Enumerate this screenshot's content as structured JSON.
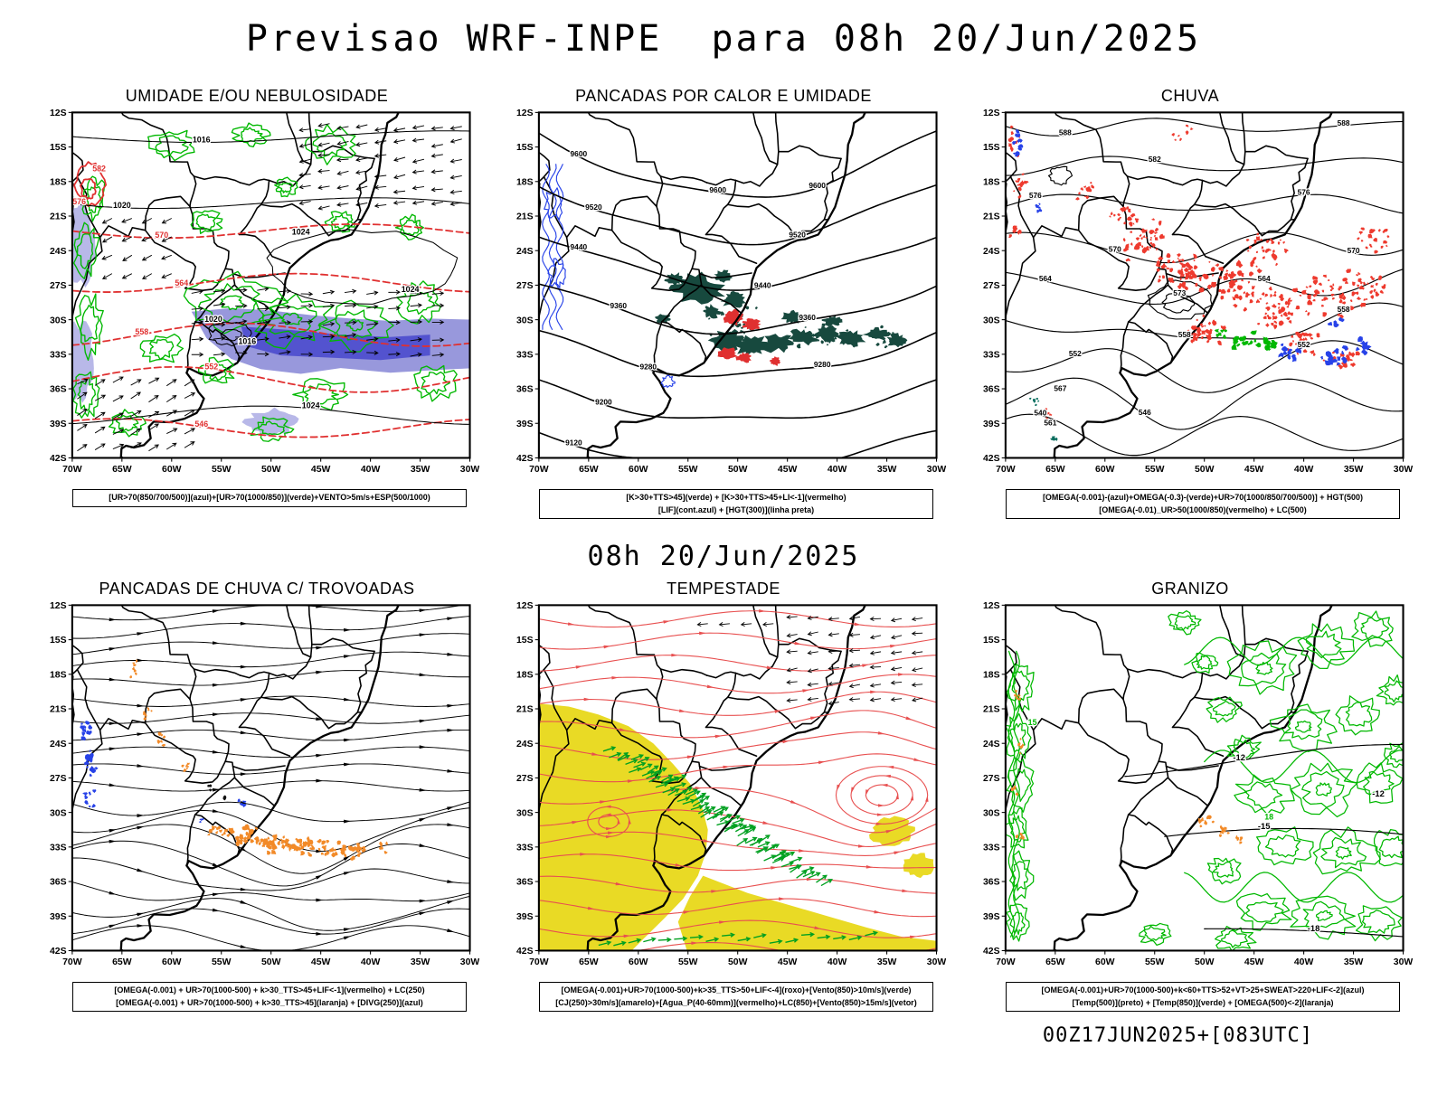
{
  "header": {
    "title": "Previsao WRF-INPE  para 08h 20/Jun/2025"
  },
  "middle_label": "08h 20/Jun/2025",
  "foot": {
    "run_label": "00Z17JUN2025+[083UTC]"
  },
  "axes": {
    "lat_labels": [
      "12S",
      "15S",
      "18S",
      "21S",
      "24S",
      "27S",
      "30S",
      "33S",
      "36S",
      "39S",
      "42S"
    ],
    "lon_labels": [
      "70W",
      "65W",
      "60W",
      "55W",
      "50W",
      "45W",
      "40W",
      "35W",
      "30W"
    ],
    "lat_range": [
      12,
      42
    ],
    "lon_range": [
      70,
      30
    ]
  },
  "colors": {
    "green": "#00b800",
    "teal": "#17493e",
    "teal_speck": "#0b6e5f",
    "red": "#e03030",
    "red_speckle": "#ee3a2e",
    "stream_red": "#e85050",
    "blue": "#2742e8",
    "shade_light": "#b8b8e8",
    "shade_mid": "#9898dc",
    "shade_dark": "#5353cf",
    "orange": "#f28a28",
    "yellow": "#e9da25",
    "vector_green": "#00a020",
    "black": "#000000"
  },
  "panels": [
    {
      "key": "umidade",
      "title": "UMIDADE E/OU NEBULOSIDADE",
      "caption_lines": [
        "[UR>70(850/700/500)](azul)+[UR>70(1000/850)](verde)+VENTO>5m/s+ESP(500/1000)"
      ],
      "contour_labels": {
        "black": [
          "1016",
          "1020",
          "1024",
          "1024",
          "1020",
          "1016",
          "1024"
        ],
        "red": [
          "582",
          "576",
          "570",
          "564",
          "558",
          "552",
          "546"
        ]
      }
    },
    {
      "key": "pancadas_calor",
      "title": "PANCADAS POR CALOR E UMIDADE",
      "caption_lines": [
        "[K>30+TTS>45](verde) + [K>30+TTS>45+LI<-1](vermelho)",
        "[LIF](cont.azul) + [HGT(300)](linha preta)"
      ],
      "contour_labels": {
        "black": [
          "9600",
          "9520",
          "9440",
          "9360",
          "9280",
          "9200",
          "9120"
        ]
      }
    },
    {
      "key": "chuva",
      "title": "CHUVA",
      "caption_lines": [
        "[OMEGA(-0.001)-(azul)+OMEGA(-0.3)-(verde)+UR>70(1000/850/700/500)] + HGT(500)",
        "[OMEGA(-0.01)_UR>50(1000/850)(vermelho) + LC(500)"
      ],
      "contour_labels": {
        "black": [
          "588",
          "582",
          "576",
          "570",
          "564",
          "558",
          "552",
          "546",
          "540",
          "573",
          "567",
          "561"
        ]
      }
    },
    {
      "key": "trovoadas",
      "title": "PANCADAS DE CHUVA C/ TROVOADAS",
      "caption_lines": [
        "[OMEGA(-0.001) + UR>70(1000-500) + k>30_TTS>45+LIF<-1](vermelho) + LC(250)",
        "[OMEGA(-0.001) + UR>70(1000-500) + k>30_TTS>45](laranja) + [DIVG(250)](azul)"
      ]
    },
    {
      "key": "tempestade",
      "title": "TEMPESTADE",
      "caption_lines": [
        "[OMEGA(-0.001)+UR>70(1000-500)+k>35_TTS>50+LIF<-4](roxo)+[Vento(850)>10m/s](verde)",
        "[CJ(250)>30m/s](amarelo)+[Agua_P(40-60mm)](vermelho)+LC(850)+[Vento(850)>15m/s](vetor)"
      ]
    },
    {
      "key": "granizo",
      "title": "GRANIZO",
      "caption_lines": [
        "[OMEGA(-0.001)+UR>70(1000-500)+k<60+TTS>52+VT>25+SWEAT>220+LIF<-2](azul)",
        "[Temp(500)](preto) + [Temp(850)](verde) + [OMEGA(500)<-2](laranja)"
      ],
      "contour_labels": {
        "black": [
          "-12",
          "-15",
          "-18",
          "-12"
        ],
        "green": [
          "15",
          "18"
        ]
      }
    }
  ]
}
